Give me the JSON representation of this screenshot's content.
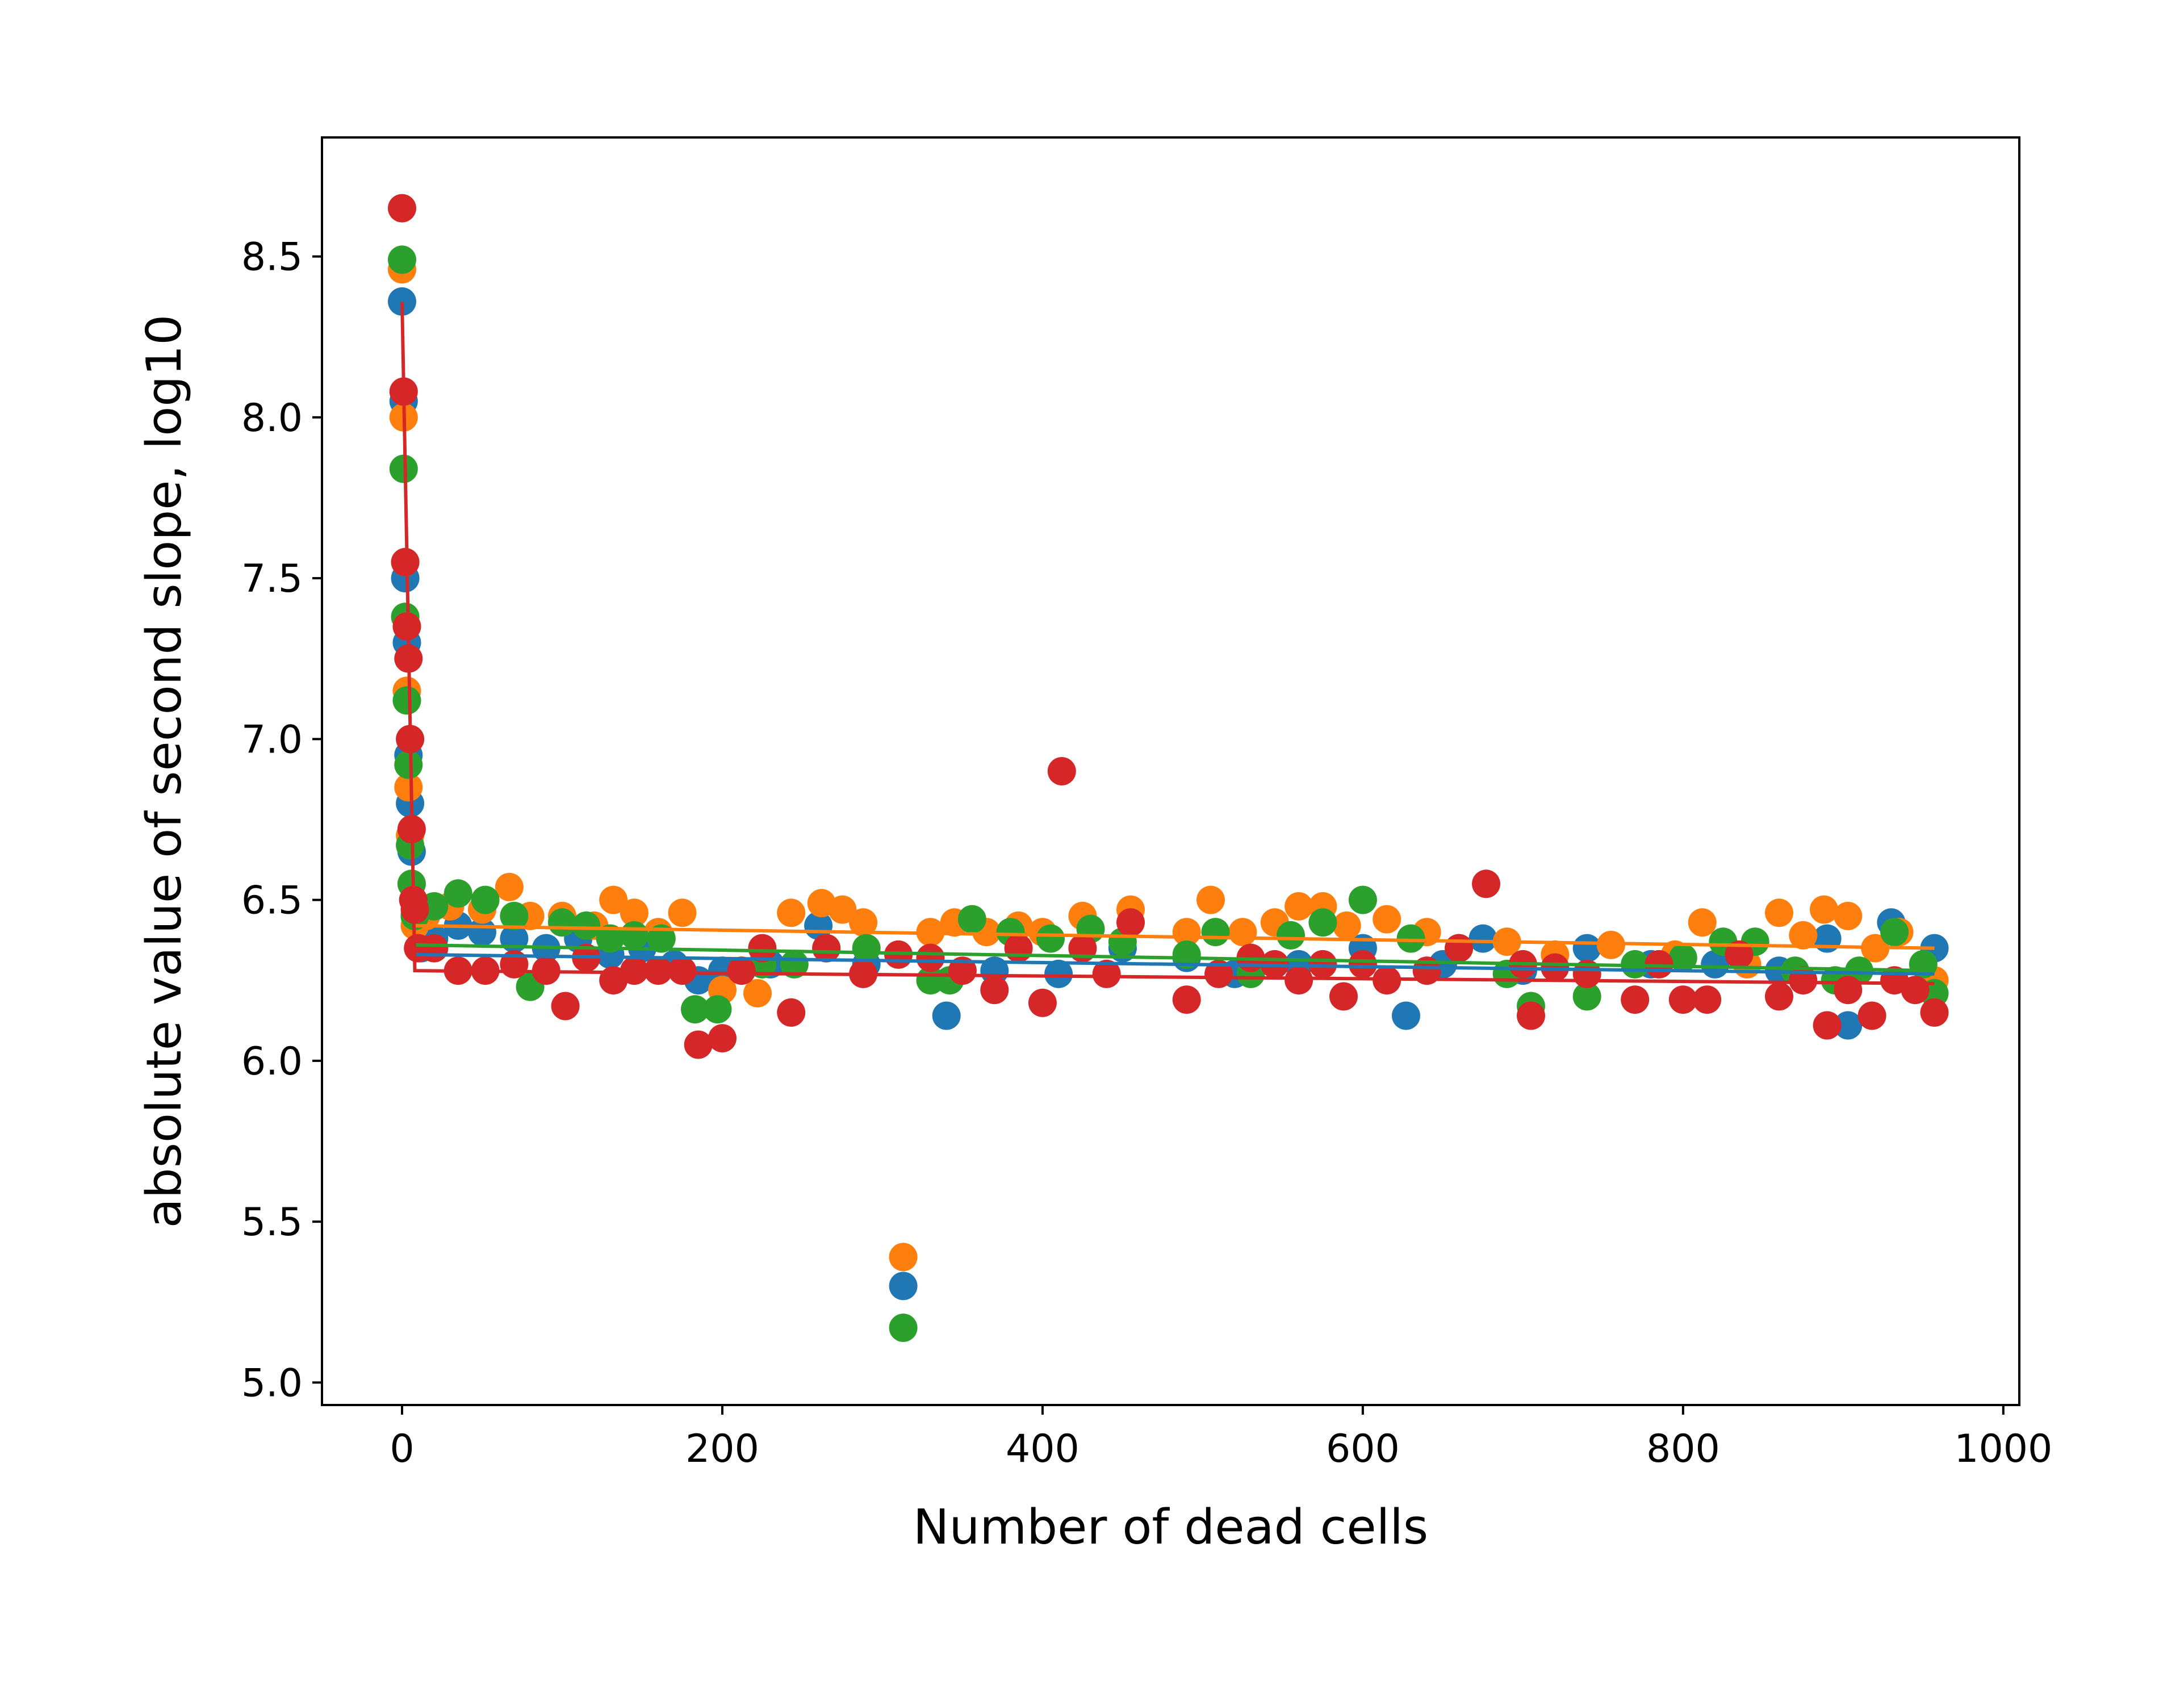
{
  "chart_data": {
    "type": "scatter",
    "title": "",
    "xlabel": "Number of dead cells",
    "ylabel": "absolute value of second slope, log10",
    "xlim": [
      -50,
      1010
    ],
    "ylim": [
      4.93,
      8.87
    ],
    "xticks": [
      0,
      200,
      400,
      600,
      800,
      1000
    ],
    "yticks": [
      5.0,
      5.5,
      6.0,
      6.5,
      7.0,
      7.5,
      8.0,
      8.5
    ],
    "xtick_labels": [
      "0",
      "200",
      "400",
      "600",
      "800",
      "1000"
    ],
    "ytick_labels": [
      "5.0",
      "5.5",
      "6.0",
      "6.5",
      "7.0",
      "7.5",
      "8.0",
      "8.5"
    ],
    "grid": false,
    "legend": "none",
    "series": [
      {
        "color": "#1f77b4",
        "points": [
          [
            0,
            8.36
          ],
          [
            1,
            8.05
          ],
          [
            2,
            7.5
          ],
          [
            3,
            7.3
          ],
          [
            4,
            6.95
          ],
          [
            5,
            6.8
          ],
          [
            6,
            6.65
          ],
          [
            8,
            6.45
          ],
          [
            12,
            6.35
          ],
          [
            20,
            6.38
          ],
          [
            35,
            6.42
          ],
          [
            50,
            6.4
          ],
          [
            70,
            6.38
          ],
          [
            90,
            6.35
          ],
          [
            110,
            6.38
          ],
          [
            130,
            6.33
          ],
          [
            150,
            6.35
          ],
          [
            170,
            6.3
          ],
          [
            185,
            6.25
          ],
          [
            200,
            6.28
          ],
          [
            230,
            6.3
          ],
          [
            260,
            6.42
          ],
          [
            290,
            6.3
          ],
          [
            313,
            5.3
          ],
          [
            340,
            6.14
          ],
          [
            370,
            6.28
          ],
          [
            410,
            6.27
          ],
          [
            450,
            6.35
          ],
          [
            490,
            6.32
          ],
          [
            520,
            6.27
          ],
          [
            560,
            6.3
          ],
          [
            600,
            6.35
          ],
          [
            627,
            6.14
          ],
          [
            650,
            6.3
          ],
          [
            675,
            6.38
          ],
          [
            700,
            6.28
          ],
          [
            740,
            6.35
          ],
          [
            780,
            6.3
          ],
          [
            820,
            6.3
          ],
          [
            860,
            6.28
          ],
          [
            890,
            6.38
          ],
          [
            903,
            6.11
          ],
          [
            930,
            6.43
          ],
          [
            957,
            6.35
          ]
        ],
        "fit": [
          [
            8,
            6.33
          ],
          [
            957,
            6.27
          ]
        ]
      },
      {
        "color": "#ff7f0e",
        "points": [
          [
            0,
            8.46
          ],
          [
            1,
            8.0
          ],
          [
            2,
            7.55
          ],
          [
            3,
            7.15
          ],
          [
            4,
            6.85
          ],
          [
            5,
            6.7
          ],
          [
            6,
            6.55
          ],
          [
            8,
            6.42
          ],
          [
            15,
            6.45
          ],
          [
            30,
            6.48
          ],
          [
            50,
            6.47
          ],
          [
            67,
            6.54
          ],
          [
            80,
            6.45
          ],
          [
            100,
            6.45
          ],
          [
            120,
            6.42
          ],
          [
            132,
            6.5
          ],
          [
            145,
            6.46
          ],
          [
            160,
            6.4
          ],
          [
            175,
            6.46
          ],
          [
            200,
            6.22
          ],
          [
            222,
            6.21
          ],
          [
            243,
            6.46
          ],
          [
            262,
            6.49
          ],
          [
            275,
            6.47
          ],
          [
            288,
            6.43
          ],
          [
            313,
            5.39
          ],
          [
            330,
            6.4
          ],
          [
            345,
            6.43
          ],
          [
            365,
            6.4
          ],
          [
            385,
            6.42
          ],
          [
            400,
            6.4
          ],
          [
            425,
            6.45
          ],
          [
            455,
            6.47
          ],
          [
            490,
            6.4
          ],
          [
            505,
            6.5
          ],
          [
            525,
            6.4
          ],
          [
            545,
            6.43
          ],
          [
            560,
            6.48
          ],
          [
            575,
            6.48
          ],
          [
            590,
            6.42
          ],
          [
            615,
            6.44
          ],
          [
            640,
            6.4
          ],
          [
            690,
            6.37
          ],
          [
            720,
            6.33
          ],
          [
            755,
            6.36
          ],
          [
            795,
            6.33
          ],
          [
            812,
            6.43
          ],
          [
            840,
            6.3
          ],
          [
            860,
            6.46
          ],
          [
            875,
            6.39
          ],
          [
            888,
            6.47
          ],
          [
            903,
            6.45
          ],
          [
            920,
            6.35
          ],
          [
            935,
            6.4
          ],
          [
            957,
            6.25
          ]
        ],
        "fit": [
          [
            8,
            6.42
          ],
          [
            957,
            6.35
          ]
        ]
      },
      {
        "color": "#2ca02c",
        "points": [
          [
            0,
            8.49
          ],
          [
            1,
            7.84
          ],
          [
            2,
            7.38
          ],
          [
            3,
            7.12
          ],
          [
            4,
            6.92
          ],
          [
            5,
            6.67
          ],
          [
            6,
            6.55
          ],
          [
            8,
            6.45
          ],
          [
            20,
            6.48
          ],
          [
            35,
            6.52
          ],
          [
            52,
            6.5
          ],
          [
            70,
            6.45
          ],
          [
            80,
            6.23
          ],
          [
            100,
            6.43
          ],
          [
            115,
            6.42
          ],
          [
            130,
            6.38
          ],
          [
            145,
            6.39
          ],
          [
            162,
            6.38
          ],
          [
            183,
            6.16
          ],
          [
            197,
            6.16
          ],
          [
            225,
            6.3
          ],
          [
            245,
            6.3
          ],
          [
            265,
            6.35
          ],
          [
            290,
            6.35
          ],
          [
            313,
            5.17
          ],
          [
            330,
            6.25
          ],
          [
            342,
            6.25
          ],
          [
            356,
            6.44
          ],
          [
            380,
            6.4
          ],
          [
            405,
            6.38
          ],
          [
            430,
            6.41
          ],
          [
            450,
            6.37
          ],
          [
            490,
            6.33
          ],
          [
            508,
            6.4
          ],
          [
            530,
            6.27
          ],
          [
            555,
            6.39
          ],
          [
            575,
            6.43
          ],
          [
            600,
            6.5
          ],
          [
            630,
            6.38
          ],
          [
            660,
            6.35
          ],
          [
            690,
            6.27
          ],
          [
            705,
            6.17
          ],
          [
            740,
            6.2
          ],
          [
            770,
            6.3
          ],
          [
            800,
            6.32
          ],
          [
            825,
            6.37
          ],
          [
            845,
            6.37
          ],
          [
            870,
            6.28
          ],
          [
            895,
            6.25
          ],
          [
            910,
            6.28
          ],
          [
            932,
            6.4
          ],
          [
            950,
            6.3
          ],
          [
            957,
            6.21
          ]
        ],
        "fit": [
          [
            8,
            6.36
          ],
          [
            957,
            6.28
          ]
        ]
      },
      {
        "color": "#d62728",
        "points": [
          [
            0,
            8.65
          ],
          [
            1,
            8.08
          ],
          [
            2,
            7.55
          ],
          [
            3,
            7.35
          ],
          [
            4,
            7.25
          ],
          [
            5,
            7.0
          ],
          [
            6,
            6.72
          ],
          [
            7,
            6.5
          ],
          [
            8,
            6.47
          ],
          [
            10,
            6.35
          ],
          [
            20,
            6.35
          ],
          [
            35,
            6.28
          ],
          [
            52,
            6.28
          ],
          [
            70,
            6.3
          ],
          [
            90,
            6.28
          ],
          [
            102,
            6.17
          ],
          [
            115,
            6.32
          ],
          [
            132,
            6.25
          ],
          [
            145,
            6.28
          ],
          [
            160,
            6.28
          ],
          [
            175,
            6.28
          ],
          [
            185,
            6.05
          ],
          [
            200,
            6.07
          ],
          [
            212,
            6.28
          ],
          [
            225,
            6.35
          ],
          [
            243,
            6.15
          ],
          [
            265,
            6.35
          ],
          [
            288,
            6.27
          ],
          [
            310,
            6.33
          ],
          [
            330,
            6.32
          ],
          [
            350,
            6.28
          ],
          [
            370,
            6.22
          ],
          [
            385,
            6.35
          ],
          [
            400,
            6.18
          ],
          [
            412,
            6.9
          ],
          [
            425,
            6.35
          ],
          [
            440,
            6.27
          ],
          [
            455,
            6.43
          ],
          [
            490,
            6.19
          ],
          [
            510,
            6.27
          ],
          [
            530,
            6.32
          ],
          [
            545,
            6.3
          ],
          [
            560,
            6.25
          ],
          [
            575,
            6.3
          ],
          [
            588,
            6.2
          ],
          [
            600,
            6.3
          ],
          [
            615,
            6.25
          ],
          [
            640,
            6.28
          ],
          [
            660,
            6.35
          ],
          [
            677,
            6.55
          ],
          [
            700,
            6.3
          ],
          [
            705,
            6.14
          ],
          [
            720,
            6.29
          ],
          [
            740,
            6.27
          ],
          [
            770,
            6.19
          ],
          [
            785,
            6.3
          ],
          [
            800,
            6.19
          ],
          [
            815,
            6.19
          ],
          [
            835,
            6.33
          ],
          [
            860,
            6.2
          ],
          [
            875,
            6.25
          ],
          [
            890,
            6.11
          ],
          [
            903,
            6.22
          ],
          [
            918,
            6.14
          ],
          [
            932,
            6.25
          ],
          [
            945,
            6.22
          ],
          [
            957,
            6.15
          ]
        ],
        "fit": [
          [
            0,
            8.36
          ],
          [
            8,
            6.28
          ],
          [
            957,
            6.24
          ]
        ]
      }
    ]
  }
}
